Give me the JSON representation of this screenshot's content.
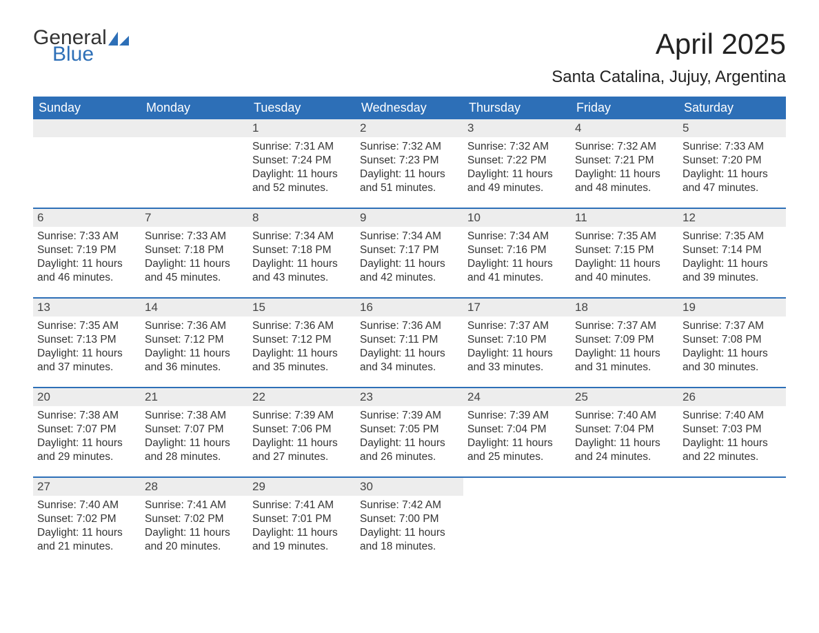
{
  "logo": {
    "text1": "General",
    "text2": "Blue"
  },
  "title": "April 2025",
  "location": "Santa Catalina, Jujuy, Argentina",
  "colors": {
    "header_bg": "#2d6fb7",
    "header_text": "#ffffff",
    "daynum_bg": "#ededed",
    "row_border": "#2d6fb7",
    "body_text": "#333333",
    "logo_blue": "#2d6fb7"
  },
  "weekdays": [
    "Sunday",
    "Monday",
    "Tuesday",
    "Wednesday",
    "Thursday",
    "Friday",
    "Saturday"
  ],
  "weeks": [
    [
      null,
      null,
      {
        "n": "1",
        "sr": "Sunrise: 7:31 AM",
        "ss": "Sunset: 7:24 PM",
        "d1": "Daylight: 11 hours",
        "d2": "and 52 minutes."
      },
      {
        "n": "2",
        "sr": "Sunrise: 7:32 AM",
        "ss": "Sunset: 7:23 PM",
        "d1": "Daylight: 11 hours",
        "d2": "and 51 minutes."
      },
      {
        "n": "3",
        "sr": "Sunrise: 7:32 AM",
        "ss": "Sunset: 7:22 PM",
        "d1": "Daylight: 11 hours",
        "d2": "and 49 minutes."
      },
      {
        "n": "4",
        "sr": "Sunrise: 7:32 AM",
        "ss": "Sunset: 7:21 PM",
        "d1": "Daylight: 11 hours",
        "d2": "and 48 minutes."
      },
      {
        "n": "5",
        "sr": "Sunrise: 7:33 AM",
        "ss": "Sunset: 7:20 PM",
        "d1": "Daylight: 11 hours",
        "d2": "and 47 minutes."
      }
    ],
    [
      {
        "n": "6",
        "sr": "Sunrise: 7:33 AM",
        "ss": "Sunset: 7:19 PM",
        "d1": "Daylight: 11 hours",
        "d2": "and 46 minutes."
      },
      {
        "n": "7",
        "sr": "Sunrise: 7:33 AM",
        "ss": "Sunset: 7:18 PM",
        "d1": "Daylight: 11 hours",
        "d2": "and 45 minutes."
      },
      {
        "n": "8",
        "sr": "Sunrise: 7:34 AM",
        "ss": "Sunset: 7:18 PM",
        "d1": "Daylight: 11 hours",
        "d2": "and 43 minutes."
      },
      {
        "n": "9",
        "sr": "Sunrise: 7:34 AM",
        "ss": "Sunset: 7:17 PM",
        "d1": "Daylight: 11 hours",
        "d2": "and 42 minutes."
      },
      {
        "n": "10",
        "sr": "Sunrise: 7:34 AM",
        "ss": "Sunset: 7:16 PM",
        "d1": "Daylight: 11 hours",
        "d2": "and 41 minutes."
      },
      {
        "n": "11",
        "sr": "Sunrise: 7:35 AM",
        "ss": "Sunset: 7:15 PM",
        "d1": "Daylight: 11 hours",
        "d2": "and 40 minutes."
      },
      {
        "n": "12",
        "sr": "Sunrise: 7:35 AM",
        "ss": "Sunset: 7:14 PM",
        "d1": "Daylight: 11 hours",
        "d2": "and 39 minutes."
      }
    ],
    [
      {
        "n": "13",
        "sr": "Sunrise: 7:35 AM",
        "ss": "Sunset: 7:13 PM",
        "d1": "Daylight: 11 hours",
        "d2": "and 37 minutes."
      },
      {
        "n": "14",
        "sr": "Sunrise: 7:36 AM",
        "ss": "Sunset: 7:12 PM",
        "d1": "Daylight: 11 hours",
        "d2": "and 36 minutes."
      },
      {
        "n": "15",
        "sr": "Sunrise: 7:36 AM",
        "ss": "Sunset: 7:12 PM",
        "d1": "Daylight: 11 hours",
        "d2": "and 35 minutes."
      },
      {
        "n": "16",
        "sr": "Sunrise: 7:36 AM",
        "ss": "Sunset: 7:11 PM",
        "d1": "Daylight: 11 hours",
        "d2": "and 34 minutes."
      },
      {
        "n": "17",
        "sr": "Sunrise: 7:37 AM",
        "ss": "Sunset: 7:10 PM",
        "d1": "Daylight: 11 hours",
        "d2": "and 33 minutes."
      },
      {
        "n": "18",
        "sr": "Sunrise: 7:37 AM",
        "ss": "Sunset: 7:09 PM",
        "d1": "Daylight: 11 hours",
        "d2": "and 31 minutes."
      },
      {
        "n": "19",
        "sr": "Sunrise: 7:37 AM",
        "ss": "Sunset: 7:08 PM",
        "d1": "Daylight: 11 hours",
        "d2": "and 30 minutes."
      }
    ],
    [
      {
        "n": "20",
        "sr": "Sunrise: 7:38 AM",
        "ss": "Sunset: 7:07 PM",
        "d1": "Daylight: 11 hours",
        "d2": "and 29 minutes."
      },
      {
        "n": "21",
        "sr": "Sunrise: 7:38 AM",
        "ss": "Sunset: 7:07 PM",
        "d1": "Daylight: 11 hours",
        "d2": "and 28 minutes."
      },
      {
        "n": "22",
        "sr": "Sunrise: 7:39 AM",
        "ss": "Sunset: 7:06 PM",
        "d1": "Daylight: 11 hours",
        "d2": "and 27 minutes."
      },
      {
        "n": "23",
        "sr": "Sunrise: 7:39 AM",
        "ss": "Sunset: 7:05 PM",
        "d1": "Daylight: 11 hours",
        "d2": "and 26 minutes."
      },
      {
        "n": "24",
        "sr": "Sunrise: 7:39 AM",
        "ss": "Sunset: 7:04 PM",
        "d1": "Daylight: 11 hours",
        "d2": "and 25 minutes."
      },
      {
        "n": "25",
        "sr": "Sunrise: 7:40 AM",
        "ss": "Sunset: 7:04 PM",
        "d1": "Daylight: 11 hours",
        "d2": "and 24 minutes."
      },
      {
        "n": "26",
        "sr": "Sunrise: 7:40 AM",
        "ss": "Sunset: 7:03 PM",
        "d1": "Daylight: 11 hours",
        "d2": "and 22 minutes."
      }
    ],
    [
      {
        "n": "27",
        "sr": "Sunrise: 7:40 AM",
        "ss": "Sunset: 7:02 PM",
        "d1": "Daylight: 11 hours",
        "d2": "and 21 minutes."
      },
      {
        "n": "28",
        "sr": "Sunrise: 7:41 AM",
        "ss": "Sunset: 7:02 PM",
        "d1": "Daylight: 11 hours",
        "d2": "and 20 minutes."
      },
      {
        "n": "29",
        "sr": "Sunrise: 7:41 AM",
        "ss": "Sunset: 7:01 PM",
        "d1": "Daylight: 11 hours",
        "d2": "and 19 minutes."
      },
      {
        "n": "30",
        "sr": "Sunrise: 7:42 AM",
        "ss": "Sunset: 7:00 PM",
        "d1": "Daylight: 11 hours",
        "d2": "and 18 minutes."
      },
      null,
      null,
      null
    ]
  ]
}
